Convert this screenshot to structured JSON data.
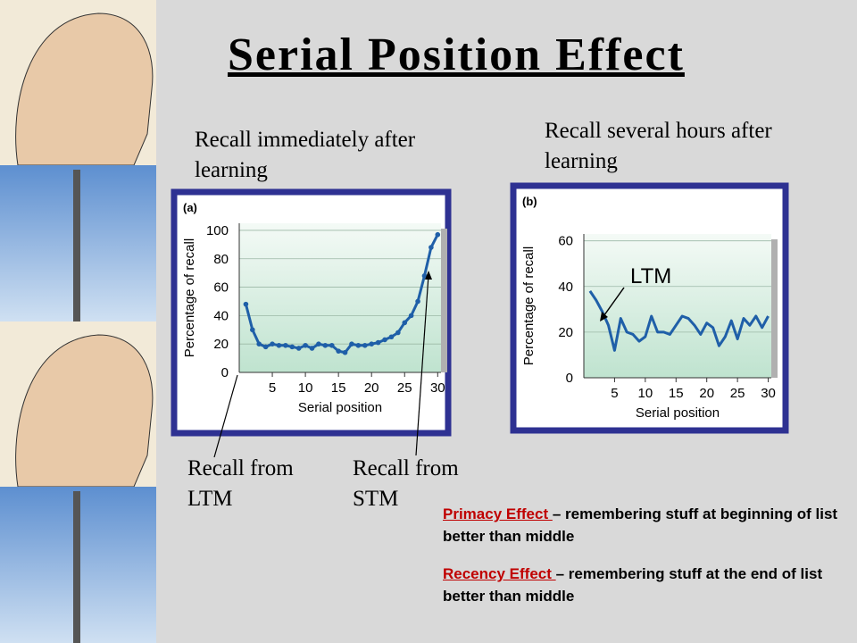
{
  "title": "Serial Position Effect",
  "caption_a": "Recall immediately after learning",
  "caption_b": "Recall several hours after learning",
  "label_ltm": "Recall from LTM",
  "label_stm": "Recall from STM",
  "notes": [
    {
      "term": "Primacy Effect ",
      "text": "– remembering stuff at beginning of list better than middle"
    },
    {
      "term": "Recency Effect ",
      "text": "– remembering stuff at the end of list better than middle"
    }
  ],
  "chart_data": [
    {
      "type": "line",
      "label": "(a)",
      "y_label": "Percentage of recall",
      "x_label": "Serial position",
      "x": [
        1,
        2,
        3,
        4,
        5,
        6,
        7,
        8,
        9,
        10,
        11,
        12,
        13,
        14,
        15,
        16,
        17,
        18,
        19,
        20,
        21,
        22,
        23,
        24,
        25,
        26,
        27,
        28,
        29,
        30
      ],
      "values": [
        48,
        30,
        20,
        18,
        20,
        19,
        19,
        18,
        17,
        19,
        17,
        20,
        19,
        19,
        15,
        14,
        20,
        19,
        19,
        20,
        21,
        23,
        25,
        28,
        35,
        40,
        50,
        68,
        88,
        97
      ],
      "color": "#1f5fa8",
      "markers": true,
      "xlim": [
        0,
        30.5
      ],
      "xticks": [
        5,
        10,
        15,
        20,
        25,
        30
      ],
      "ylim": [
        0,
        105
      ],
      "yticks": [
        0,
        20,
        40,
        60,
        80,
        100
      ],
      "grid": true
    },
    {
      "type": "line",
      "label": "(b)",
      "y_label": "Percentage of recall",
      "x_label": "Serial position",
      "x": [
        1,
        2,
        3,
        4,
        5,
        6,
        7,
        8,
        9,
        10,
        11,
        12,
        13,
        14,
        15,
        16,
        17,
        18,
        19,
        20,
        21,
        22,
        23,
        24,
        25,
        26,
        27,
        28,
        29,
        30
      ],
      "values": [
        38,
        34,
        29,
        23,
        12,
        26,
        20,
        19,
        16,
        18,
        27,
        20,
        20,
        19,
        23,
        27,
        26,
        23,
        19,
        24,
        22,
        14,
        18,
        25,
        17,
        26,
        23,
        27,
        22,
        27
      ],
      "color": "#1f5fa8",
      "markers": false,
      "annotation": "LTM",
      "xlim": [
        0,
        30.5
      ],
      "xticks": [
        5,
        10,
        15,
        20,
        25,
        30
      ],
      "ylim": [
        0,
        63
      ],
      "yticks": [
        0,
        20,
        40,
        60
      ],
      "grid": true
    }
  ]
}
